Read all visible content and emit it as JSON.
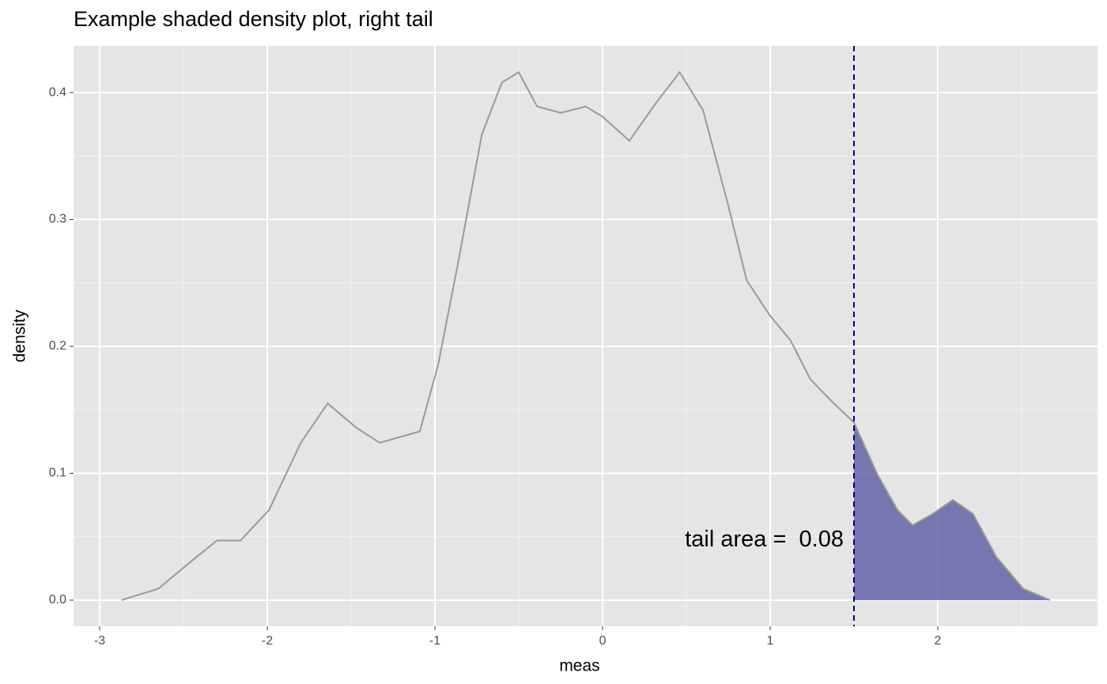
{
  "chart_data": {
    "type": "density",
    "title": "Example shaded density plot, right tail",
    "xlabel": "meas",
    "ylabel": "density",
    "x": [
      -2.87,
      -2.65,
      -2.46,
      -2.3,
      -2.16,
      -1.99,
      -1.8,
      -1.64,
      -1.47,
      -1.33,
      -1.09,
      -0.98,
      -0.86,
      -0.72,
      -0.6,
      -0.5,
      -0.39,
      -0.25,
      -0.1,
      0,
      0.16,
      0.32,
      0.46,
      0.6,
      0.75,
      0.86,
      1.0,
      1.12,
      1.24,
      1.38,
      1.5,
      1.64,
      1.76,
      1.85,
      1.97,
      2.09,
      2.21,
      2.35,
      2.51,
      2.67
    ],
    "values": [
      0,
      0.009,
      0.03,
      0.047,
      0.047,
      0.071,
      0.124,
      0.155,
      0.136,
      0.124,
      0.133,
      0.186,
      0.267,
      0.367,
      0.408,
      0.416,
      0.389,
      0.384,
      0.389,
      0.381,
      0.362,
      0.392,
      0.416,
      0.386,
      0.311,
      0.252,
      0.224,
      0.205,
      0.174,
      0.155,
      0.14,
      0.099,
      0.071,
      0.059,
      0.068,
      0.079,
      0.068,
      0.034,
      0.009,
      0
    ],
    "color": "#999999",
    "shade_from": 1.5,
    "shade_color": "#5a5aa3",
    "vline": 1.5,
    "vline_color": "#00008b",
    "annotation": "tail area =  0.08",
    "xlim": [
      -3.156,
      2.953
    ],
    "xticks": [
      -3,
      -2,
      -1,
      0,
      1,
      2
    ],
    "ylim": [
      -0.0206,
      0.4368
    ],
    "yticks": [
      {
        "value": 0,
        "label": "0.0"
      },
      0.1,
      0.2,
      0.3,
      0.4
    ],
    "grid": true
  }
}
